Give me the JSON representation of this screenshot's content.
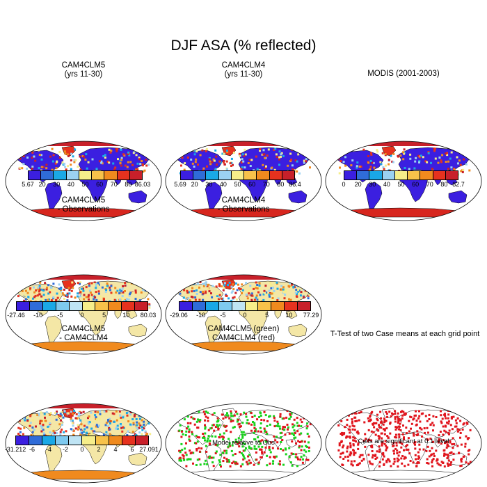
{
  "title": "DJF ASA (% reflected)",
  "colors": {
    "abs": [
      "#3b1fe0",
      "#2f6cd8",
      "#1aa8e6",
      "#9bd1f2",
      "#f6ee8a",
      "#f7c24a",
      "#f08a1e",
      "#e6321e",
      "#c8202a"
    ],
    "diff": [
      "#3b1fe0",
      "#2f6cd8",
      "#1aa8e6",
      "#7ec9ef",
      "#bfe4f4",
      "#f6ee8a",
      "#f7c24a",
      "#f08a1e",
      "#e6321e",
      "#c8202a"
    ],
    "land": "#f4e7a6",
    "ocean": "#ffffff",
    "antarctica": "#d7261e",
    "green": "#18d21c",
    "red": "#e0141c"
  },
  "panels": [
    {
      "id": "p1",
      "title1": "CAM4CLM5",
      "title2": "(yrs 11-30)",
      "bar": "abs",
      "ticks": [
        "5.67",
        "20",
        "30",
        "40",
        "50",
        "60",
        "70",
        "80",
        "86.03"
      ]
    },
    {
      "id": "p2",
      "title1": "CAM4CLM4",
      "title2": "(yrs 11-30)",
      "bar": "abs",
      "ticks": [
        "5.69",
        "20",
        "30",
        "40",
        "50",
        "60",
        "70",
        "80",
        "86.4"
      ]
    },
    {
      "id": "p3",
      "title1": "MODIS (2001-2003)",
      "title2": "",
      "bar": "abs",
      "ticks": [
        "0",
        "20",
        "30",
        "40",
        "50",
        "60",
        "70",
        "80",
        "82.7"
      ]
    },
    {
      "id": "p4",
      "title1": "CAM4CLM5",
      "title2": "- Observations",
      "bar": "diff",
      "ticks": [
        "-27.46",
        "-10",
        "-5",
        "0",
        "5",
        "10",
        "80.03"
      ]
    },
    {
      "id": "p5",
      "title1": "CAM4CLM4",
      "title2": "- Observations",
      "bar": "diff",
      "ticks": [
        "-29.06",
        "-10",
        "-5",
        "0",
        "5",
        "10",
        "77.29"
      ]
    },
    {
      "id": "p7",
      "title1": "CAM4CLM5",
      "title2": "- CAM4CLM4",
      "bar": "diff",
      "ticks": [
        "-31.212",
        "-6",
        "-4",
        "-2",
        "0",
        "2",
        "4",
        "6",
        "27.091"
      ]
    },
    {
      "id": "p8",
      "title1": "CAM4CLM5 (green)",
      "title2": "CAM4CLM4 (red)",
      "note": "Model relative to Obs"
    },
    {
      "id": "p9",
      "title1": "T-Test of two Case means at each grid point",
      "title2": "",
      "note": "Cells are significant at 0.1 level"
    }
  ]
}
